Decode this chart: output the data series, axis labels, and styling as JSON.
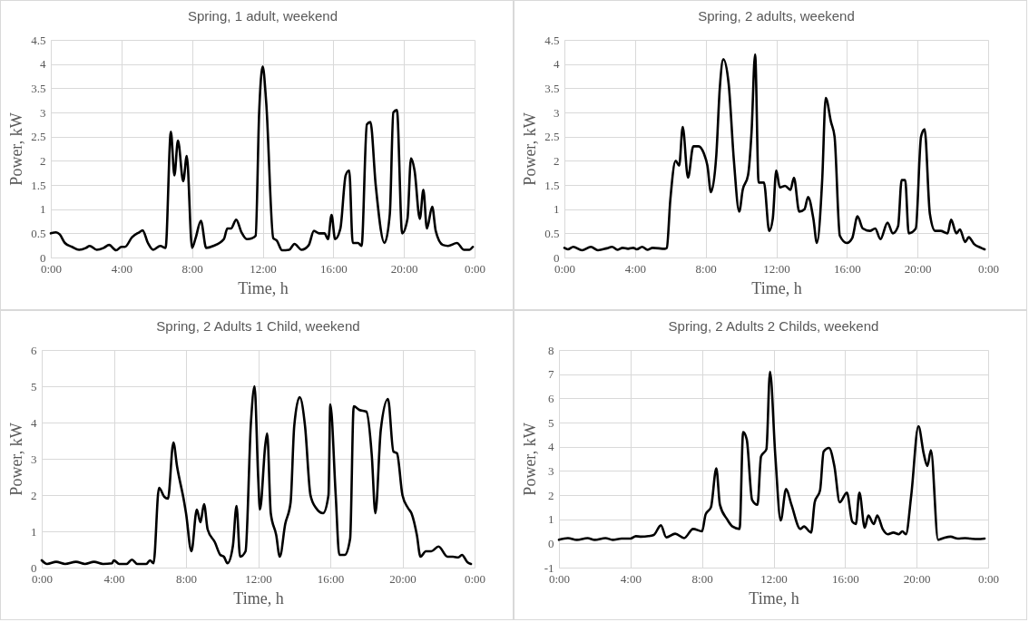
{
  "chart_data": [
    {
      "type": "line",
      "title": "Spring, 1 adult, weekend",
      "xlabel": "Time, h",
      "ylabel": "Power, kW",
      "xlim": [
        0,
        24
      ],
      "xticks": [
        {
          "value": 0,
          "label": "0:00"
        },
        {
          "value": 4,
          "label": "4:00"
        },
        {
          "value": 8,
          "label": "8:00"
        },
        {
          "value": 12,
          "label": "12:00"
        },
        {
          "value": 16,
          "label": "16:00"
        },
        {
          "value": 20,
          "label": "20:00"
        },
        {
          "value": 24,
          "label": "0:00"
        }
      ],
      "ylim": [
        0,
        4.5
      ],
      "yticks": [
        0,
        0.5,
        1,
        1.5,
        2,
        2.5,
        3,
        3.5,
        4,
        4.5
      ],
      "grid": true,
      "marker": "none",
      "line_style": "solid",
      "series": [
        {
          "color": "#000000",
          "x": [
            0,
            0.3,
            0.5,
            0.8,
            1.2,
            1.6,
            2.0,
            2.2,
            2.6,
            3.0,
            3.3,
            3.7,
            4.0,
            4.2,
            4.6,
            5.0,
            5.2,
            5.5,
            5.8,
            6.2,
            6.5,
            6.8,
            7.0,
            7.2,
            7.5,
            7.7,
            8.0,
            8.2,
            8.5,
            8.8,
            9.2,
            9.8,
            10.0,
            10.2,
            10.5,
            10.8,
            11.1,
            11.4,
            11.6,
            11.8,
            12.0,
            12.2,
            12.6,
            12.8,
            13.1,
            13.5,
            13.8,
            14.2,
            14.6,
            14.9,
            15.2,
            15.5,
            15.7,
            15.9,
            16.1,
            16.4,
            16.7,
            16.9,
            17.1,
            17.4,
            17.6,
            17.9,
            18.1,
            18.4,
            18.9,
            19.2,
            19.4,
            19.6,
            19.9,
            20.2,
            20.4,
            20.6,
            20.9,
            21.1,
            21.3,
            21.6,
            21.8,
            22.2,
            22.5,
            23.0,
            23.4,
            23.7,
            23.9
          ],
          "values": [
            0.5,
            0.52,
            0.48,
            0.3,
            0.22,
            0.16,
            0.2,
            0.24,
            0.16,
            0.2,
            0.26,
            0.15,
            0.22,
            0.22,
            0.42,
            0.52,
            0.56,
            0.3,
            0.16,
            0.24,
            0.2,
            2.6,
            1.7,
            2.42,
            1.58,
            2.1,
            0.2,
            0.4,
            0.76,
            0.2,
            0.24,
            0.38,
            0.6,
            0.6,
            0.78,
            0.52,
            0.38,
            0.4,
            0.45,
            3.0,
            3.95,
            3.2,
            0.4,
            0.35,
            0.15,
            0.16,
            0.28,
            0.16,
            0.25,
            0.55,
            0.5,
            0.5,
            0.38,
            0.88,
            0.38,
            0.6,
            1.7,
            1.8,
            0.3,
            0.3,
            0.24,
            2.75,
            2.8,
            1.5,
            0.3,
            0.9,
            3.0,
            3.05,
            0.5,
            0.8,
            2.05,
            1.8,
            0.8,
            1.4,
            0.6,
            1.05,
            0.55,
            0.26,
            0.24,
            0.3,
            0.16,
            0.16,
            0.22
          ]
        }
      ]
    },
    {
      "type": "line",
      "title": "Spring, 2 adults, weekend",
      "xlabel": "Time, h",
      "ylabel": "Power, kW",
      "xlim": [
        0,
        24
      ],
      "xticks": [
        {
          "value": 0,
          "label": "0:00"
        },
        {
          "value": 4,
          "label": "4:00"
        },
        {
          "value": 8,
          "label": "8:00"
        },
        {
          "value": 12,
          "label": "12:00"
        },
        {
          "value": 16,
          "label": "16:00"
        },
        {
          "value": 20,
          "label": "20:00"
        },
        {
          "value": 24,
          "label": "0:00"
        }
      ],
      "ylim": [
        0,
        4.5
      ],
      "yticks": [
        0,
        0.5,
        1,
        1.5,
        2,
        2.5,
        3,
        3.5,
        4,
        4.5
      ],
      "grid": true,
      "marker": "none",
      "line_style": "solid",
      "series": [
        {
          "color": "#000000",
          "x": [
            0,
            0.2,
            0.5,
            1.0,
            1.5,
            1.9,
            2.4,
            2.7,
            3.0,
            3.3,
            3.6,
            3.9,
            4.1,
            4.4,
            4.7,
            5.0,
            5.7,
            5.8,
            6.0,
            6.3,
            6.5,
            6.7,
            7.0,
            7.3,
            7.6,
            7.9,
            8.1,
            8.3,
            8.6,
            8.8,
            9.0,
            9.3,
            9.6,
            9.9,
            10.1,
            10.4,
            10.6,
            10.8,
            11.0,
            11.3,
            11.6,
            11.8,
            12.0,
            12.2,
            12.5,
            12.8,
            13.0,
            13.3,
            13.6,
            13.8,
            14.1,
            14.3,
            14.6,
            14.8,
            15.1,
            15.3,
            15.6,
            16.0,
            16.3,
            16.6,
            16.9,
            17.3,
            17.6,
            17.9,
            18.3,
            18.6,
            18.9,
            19.1,
            19.3,
            19.5,
            19.9,
            20.2,
            20.4,
            20.7,
            21.0,
            21.3,
            21.7,
            21.9,
            22.2,
            22.4,
            22.7,
            22.9,
            23.2,
            23.6,
            23.8
          ],
          "values": [
            0.2,
            0.17,
            0.22,
            0.15,
            0.22,
            0.15,
            0.19,
            0.22,
            0.16,
            0.2,
            0.18,
            0.2,
            0.17,
            0.22,
            0.16,
            0.2,
            0.18,
            0.2,
            1.2,
            2.0,
            1.9,
            2.7,
            1.65,
            2.3,
            2.3,
            2.15,
            1.9,
            1.35,
            2.1,
            3.5,
            4.1,
            3.6,
            2.0,
            0.95,
            1.4,
            1.7,
            2.6,
            4.2,
            1.55,
            1.55,
            0.55,
            0.8,
            1.8,
            1.45,
            1.48,
            1.4,
            1.65,
            0.95,
            1.0,
            1.25,
            0.8,
            0.3,
            1.6,
            3.3,
            2.8,
            2.5,
            0.45,
            0.3,
            0.4,
            0.85,
            0.6,
            0.55,
            0.6,
            0.38,
            0.72,
            0.5,
            0.65,
            1.6,
            1.6,
            0.5,
            0.6,
            2.5,
            2.65,
            0.9,
            0.55,
            0.55,
            0.5,
            0.78,
            0.5,
            0.58,
            0.32,
            0.42,
            0.28,
            0.2,
            0.17
          ]
        }
      ]
    },
    {
      "type": "line",
      "title": "Spring, 2 Adults 1 Child, weekend",
      "xlabel": "Time, h",
      "ylabel": "Power, kW",
      "xlim": [
        0,
        24
      ],
      "xticks": [
        {
          "value": 0,
          "label": "0:00"
        },
        {
          "value": 4,
          "label": "4:00"
        },
        {
          "value": 8,
          "label": "8:00"
        },
        {
          "value": 12,
          "label": "12:00"
        },
        {
          "value": 16,
          "label": "16:00"
        },
        {
          "value": 20,
          "label": "20:00"
        },
        {
          "value": 24,
          "label": "0:00"
        }
      ],
      "ylim": [
        0,
        6
      ],
      "yticks": [
        0,
        1,
        2,
        3,
        4,
        5,
        6
      ],
      "grid": true,
      "marker": "none",
      "line_style": "solid",
      "series": [
        {
          "color": "#000000",
          "x": [
            0,
            0.3,
            0.8,
            1.3,
            1.9,
            2.4,
            2.9,
            3.4,
            3.9,
            4.0,
            4.3,
            4.7,
            5.0,
            5.3,
            5.8,
            6.0,
            6.2,
            6.5,
            6.8,
            7.0,
            7.3,
            7.5,
            7.9,
            8.0,
            8.3,
            8.6,
            8.8,
            9.0,
            9.2,
            9.6,
            9.9,
            10.1,
            10.3,
            10.6,
            10.8,
            11.0,
            11.3,
            11.6,
            11.8,
            12.0,
            12.1,
            12.4,
            12.5,
            12.7,
            13.0,
            13.2,
            13.5,
            13.8,
            14.0,
            14.3,
            14.6,
            14.9,
            15.2,
            15.6,
            15.9,
            16.0,
            16.3,
            16.5,
            16.8,
            17.1,
            17.3,
            17.6,
            18.0,
            18.3,
            18.5,
            18.8,
            19.2,
            19.5,
            19.7,
            20.0,
            20.3,
            20.5,
            20.8,
            21.0,
            21.3,
            21.6,
            22.0,
            22.5,
            22.8,
            23.1,
            23.3,
            23.6,
            23.8
          ],
          "values": [
            0.2,
            0.1,
            0.16,
            0.1,
            0.16,
            0.1,
            0.16,
            0.1,
            0.12,
            0.2,
            0.1,
            0.1,
            0.22,
            0.1,
            0.1,
            0.2,
            0.12,
            2.2,
            1.95,
            1.9,
            3.45,
            2.8,
            1.8,
            1.5,
            0.45,
            1.6,
            1.25,
            1.75,
            1.05,
            0.7,
            0.35,
            0.3,
            0.12,
            0.6,
            1.7,
            0.3,
            0.45,
            4.0,
            5.0,
            2.5,
            1.6,
            3.4,
            3.7,
            1.5,
            0.9,
            0.3,
            1.2,
            1.8,
            3.9,
            4.7,
            3.9,
            2.0,
            1.65,
            1.5,
            2.0,
            4.5,
            2.0,
            0.35,
            0.35,
            0.8,
            4.45,
            4.35,
            4.3,
            3.1,
            1.5,
            3.8,
            4.65,
            3.2,
            3.15,
            2.0,
            1.65,
            1.5,
            0.9,
            0.3,
            0.45,
            0.45,
            0.58,
            0.3,
            0.3,
            0.28,
            0.35,
            0.15,
            0.1
          ]
        }
      ]
    },
    {
      "type": "line",
      "title": "Spring, 2 Adults 2 Childs, weekend",
      "xlabel": "Time, h",
      "ylabel": "Power, kW",
      "xlim": [
        0,
        24
      ],
      "xticks": [
        {
          "value": 0,
          "label": "0:00"
        },
        {
          "value": 4,
          "label": "4:00"
        },
        {
          "value": 8,
          "label": "8:00"
        },
        {
          "value": 12,
          "label": "12:00"
        },
        {
          "value": 16,
          "label": "16:00"
        },
        {
          "value": 20,
          "label": "20:00"
        },
        {
          "value": 24,
          "label": "0:00"
        }
      ],
      "ylim": [
        -1,
        8
      ],
      "yticks": [
        -1,
        0,
        1,
        2,
        3,
        4,
        5,
        6,
        7,
        8
      ],
      "grid": true,
      "marker": "none",
      "line_style": "solid",
      "series": [
        {
          "color": "#000000",
          "x": [
            0,
            0.5,
            1.0,
            1.6,
            2.0,
            2.6,
            3.0,
            3.5,
            4.0,
            4.3,
            4.6,
            5.0,
            5.3,
            5.7,
            6.0,
            6.5,
            7.0,
            7.5,
            8.0,
            8.2,
            8.5,
            8.8,
            9.0,
            9.4,
            9.7,
            10.1,
            10.3,
            10.5,
            10.8,
            11.1,
            11.3,
            11.6,
            11.8,
            12.1,
            12.4,
            12.7,
            13.0,
            13.5,
            13.7,
            14.1,
            14.3,
            14.6,
            14.8,
            15.1,
            15.4,
            15.7,
            16.1,
            16.4,
            16.6,
            16.8,
            17.1,
            17.3,
            17.6,
            17.8,
            18.1,
            18.4,
            18.7,
            19.0,
            19.2,
            19.4,
            19.7,
            20.1,
            20.4,
            20.6,
            20.8,
            21.2,
            21.5,
            21.9,
            22.3,
            22.7,
            23.0,
            23.4,
            23.8
          ],
          "values": [
            0.15,
            0.22,
            0.15,
            0.22,
            0.15,
            0.22,
            0.15,
            0.2,
            0.2,
            0.3,
            0.28,
            0.3,
            0.35,
            0.75,
            0.25,
            0.4,
            0.22,
            0.6,
            0.5,
            1.2,
            1.5,
            3.1,
            1.6,
            1.0,
            0.7,
            0.6,
            4.6,
            4.3,
            1.8,
            1.6,
            3.6,
            3.9,
            7.1,
            3.6,
            0.95,
            2.25,
            1.6,
            0.6,
            0.7,
            0.45,
            1.7,
            2.2,
            3.8,
            3.95,
            3.2,
            1.7,
            2.1,
            0.9,
            0.8,
            2.1,
            0.65,
            1.15,
            0.8,
            1.15,
            0.6,
            0.38,
            0.45,
            0.38,
            0.5,
            0.38,
            2.0,
            4.85,
            3.7,
            3.2,
            3.85,
            0.15,
            0.22,
            0.28,
            0.2,
            0.22,
            0.2,
            0.18,
            0.2
          ]
        }
      ]
    }
  ]
}
